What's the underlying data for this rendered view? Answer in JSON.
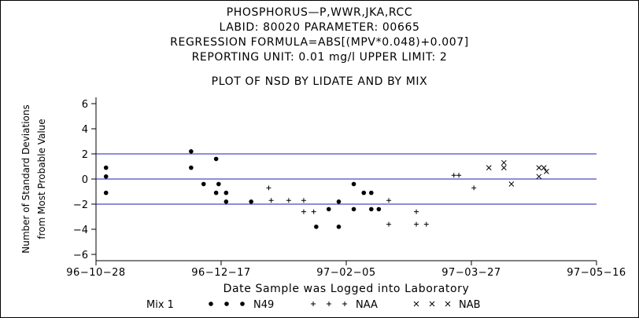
{
  "chart_data": {
    "type": "scatter",
    "title_lines": [
      "PHOSPHORUS—P,WWR,JKA,RCC",
      "LABID: 80020 PARAMETER: 00665",
      "REGRESSION FORMULA=ABS[(MPV*0.048)+0.007]",
      "REPORTING UNIT: 0.01 mg/l   UPPER LIMIT: 2"
    ],
    "subtitle": "PLOT OF NSD BY LIDATE AND BY MIX",
    "xlabel": "Date Sample was Logged into Laboratory",
    "ylabel_lines": [
      "Number of Standard Deviations",
      "from Most Probable Value"
    ],
    "x_ticks": [
      "96−10−28",
      "96−12−17",
      "97−02−05",
      "97−03−27",
      "97−05−16"
    ],
    "xlim": [
      "1996-10-28",
      "1997-05-16"
    ],
    "y_ticks": [
      6,
      4,
      2,
      0,
      -2,
      -4,
      -6
    ],
    "ylim": [
      -6.5,
      6.5
    ],
    "reference_lines": [
      2,
      0,
      -2
    ],
    "reference_line_color": "#1c1cb4",
    "legend_title": "Mix 1",
    "legend_placement": "bottom",
    "series": [
      {
        "name": "N49",
        "marker": "dot",
        "points": [
          {
            "x": "1996-11-01",
            "y": 0.9
          },
          {
            "x": "1996-11-01",
            "y": 0.2
          },
          {
            "x": "1996-11-01",
            "y": -1.1
          },
          {
            "x": "1996-12-05",
            "y": 2.2
          },
          {
            "x": "1996-12-05",
            "y": 0.9
          },
          {
            "x": "1996-12-10",
            "y": -0.4
          },
          {
            "x": "1996-12-15",
            "y": 1.6
          },
          {
            "x": "1996-12-15",
            "y": -1.1
          },
          {
            "x": "1996-12-16",
            "y": -0.4
          },
          {
            "x": "1996-12-19",
            "y": -1.1
          },
          {
            "x": "1996-12-19",
            "y": -1.8
          },
          {
            "x": "1996-12-29",
            "y": -1.8
          },
          {
            "x": "1997-01-24",
            "y": -3.8
          },
          {
            "x": "1997-01-29",
            "y": -2.4
          },
          {
            "x": "1997-02-02",
            "y": -1.8
          },
          {
            "x": "1997-02-02",
            "y": -3.8
          },
          {
            "x": "1997-02-08",
            "y": -0.4
          },
          {
            "x": "1997-02-08",
            "y": -2.4
          },
          {
            "x": "1997-02-12",
            "y": -1.1
          },
          {
            "x": "1997-02-15",
            "y": -1.1
          },
          {
            "x": "1997-02-15",
            "y": -2.4
          },
          {
            "x": "1997-02-18",
            "y": -2.4
          }
        ]
      },
      {
        "name": "NAA",
        "marker": "plus",
        "points": [
          {
            "x": "1997-01-05",
            "y": -0.7
          },
          {
            "x": "1997-01-06",
            "y": -1.7
          },
          {
            "x": "1997-01-13",
            "y": -1.7
          },
          {
            "x": "1997-01-19",
            "y": -1.7
          },
          {
            "x": "1997-01-19",
            "y": -2.6
          },
          {
            "x": "1997-01-23",
            "y": -2.6
          },
          {
            "x": "1997-02-22",
            "y": -1.7
          },
          {
            "x": "1997-02-22",
            "y": -3.6
          },
          {
            "x": "1997-03-05",
            "y": -2.6
          },
          {
            "x": "1997-03-05",
            "y": -3.6
          },
          {
            "x": "1997-03-09",
            "y": -3.6
          },
          {
            "x": "1997-03-20",
            "y": 0.3
          },
          {
            "x": "1997-03-22",
            "y": 0.3
          },
          {
            "x": "1997-03-28",
            "y": -0.7
          }
        ]
      },
      {
        "name": "NAB",
        "marker": "x",
        "points": [
          {
            "x": "1997-04-03",
            "y": 0.9
          },
          {
            "x": "1997-04-09",
            "y": 1.3
          },
          {
            "x": "1997-04-09",
            "y": 0.9
          },
          {
            "x": "1997-04-12",
            "y": -0.4
          },
          {
            "x": "1997-04-23",
            "y": 0.9
          },
          {
            "x": "1997-04-23",
            "y": 0.2
          },
          {
            "x": "1997-04-25",
            "y": 0.9
          },
          {
            "x": "1997-04-26",
            "y": 0.6
          }
        ]
      }
    ]
  }
}
